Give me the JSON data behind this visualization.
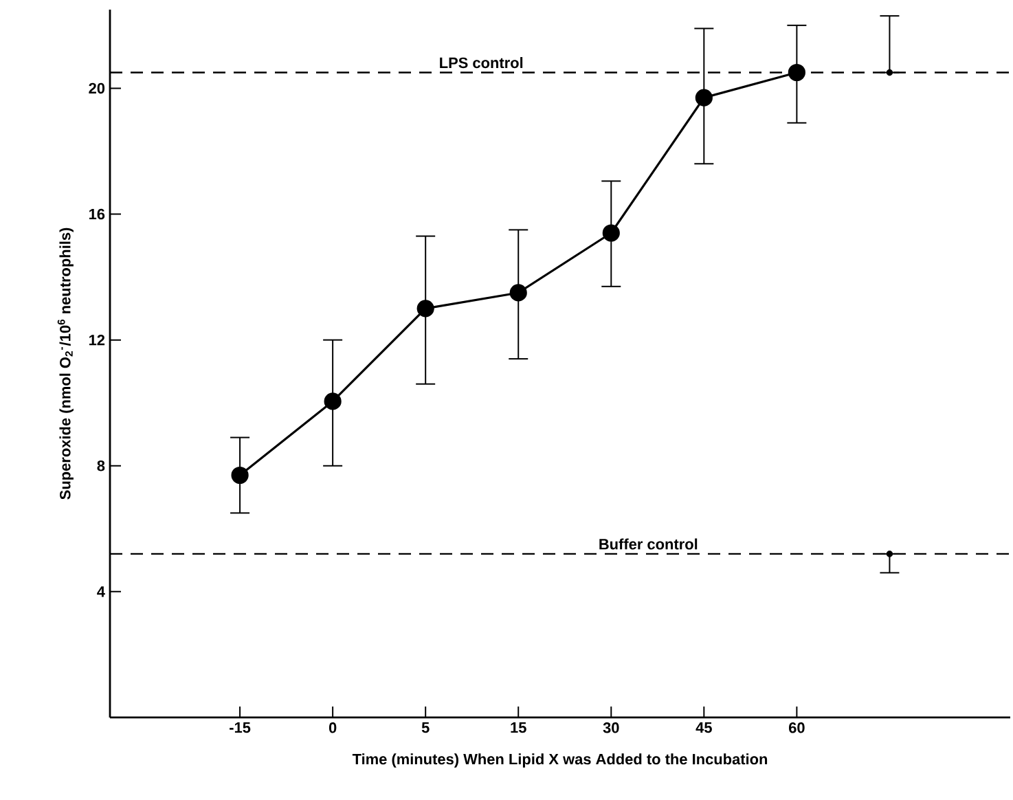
{
  "chart_data": {
    "type": "line",
    "xlabel": "Time (minutes) When Lipid X was Added to the Incubation",
    "ylabel": "Superoxide (nmol O$_{2}$$^{-}$/10$^{6}$ neutrophils)",
    "categories": [
      "-15",
      "0",
      "5",
      "15",
      "30",
      "45",
      "60",
      null
    ],
    "ylim": [
      0,
      22.5
    ],
    "yticks": [
      4,
      8,
      12,
      16,
      20
    ],
    "series": [
      {
        "type": "line",
        "color": "#000000",
        "marker": "circle",
        "values": [
          7.7,
          10.05,
          13.0,
          13.5,
          15.4,
          19.7,
          20.5,
          null
        ],
        "errors": [
          [
            6.5,
            8.9
          ],
          [
            8.0,
            12.0
          ],
          [
            10.6,
            15.3
          ],
          [
            11.4,
            15.5
          ],
          [
            13.7,
            17.05
          ],
          [
            17.6,
            21.9
          ],
          [
            18.9,
            22.0
          ],
          null
        ]
      },
      {
        "type": "scatter",
        "color": "#000000",
        "marker": "circle",
        "values": [
          null,
          null,
          null,
          null,
          null,
          null,
          null,
          20.5
        ],
        "errors": [
          null,
          null,
          null,
          null,
          null,
          null,
          null,
          [
            20.5,
            22.3
          ]
        ]
      },
      {
        "type": "scatter",
        "color": "#000000",
        "marker": "circle",
        "values": [
          null,
          null,
          null,
          null,
          null,
          null,
          null,
          5.2
        ],
        "errors": [
          null,
          null,
          null,
          null,
          null,
          null,
          null,
          [
            4.6,
            5.2
          ]
        ]
      }
    ],
    "ref_lines": [
      {
        "axis": "y",
        "value": 20.5,
        "label": "LPS control",
        "line_style": "dashed"
      },
      {
        "axis": "y",
        "value": 5.2,
        "label": "Buffer control",
        "line_style": "dashed"
      }
    ]
  }
}
